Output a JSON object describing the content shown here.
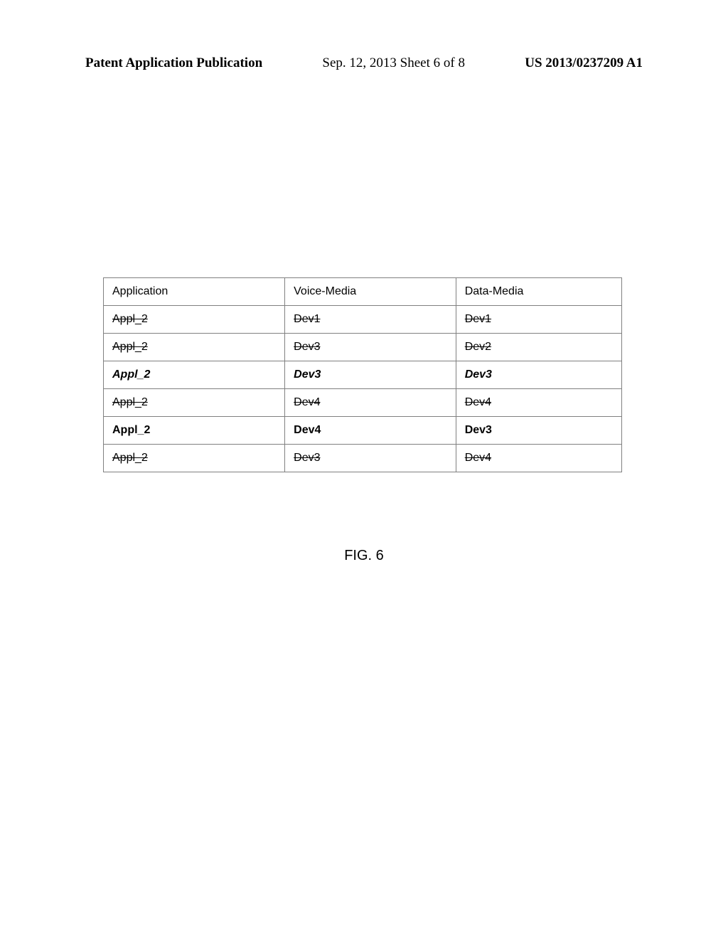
{
  "header": {
    "left": "Patent Application Publication",
    "center": "Sep. 12, 2013  Sheet 6 of 8",
    "right": "US 2013/0237209 A1"
  },
  "table": {
    "columns": [
      "Application",
      "Voice-Media",
      "Data-Media"
    ],
    "rows": [
      {
        "application": "Appl_2",
        "voice": "Dev1",
        "data": "Dev1",
        "style": "strike"
      },
      {
        "application": "Appl_2",
        "voice": "Dev3",
        "data": "Dev2",
        "style": "strike"
      },
      {
        "application": "Appl_2",
        "voice": "Dev3",
        "data": "Dev3",
        "style": "italic"
      },
      {
        "application": "Appl_2",
        "voice": "Dev4",
        "data": "Dev4",
        "style": "strike"
      },
      {
        "application": "Appl_2",
        "voice": "Dev4",
        "data": "Dev3",
        "style": "bold"
      },
      {
        "application": "Appl_2",
        "voice": "Dev3",
        "data": "Dev4",
        "style": "strike"
      }
    ]
  },
  "figure_label": "FIG. 6"
}
